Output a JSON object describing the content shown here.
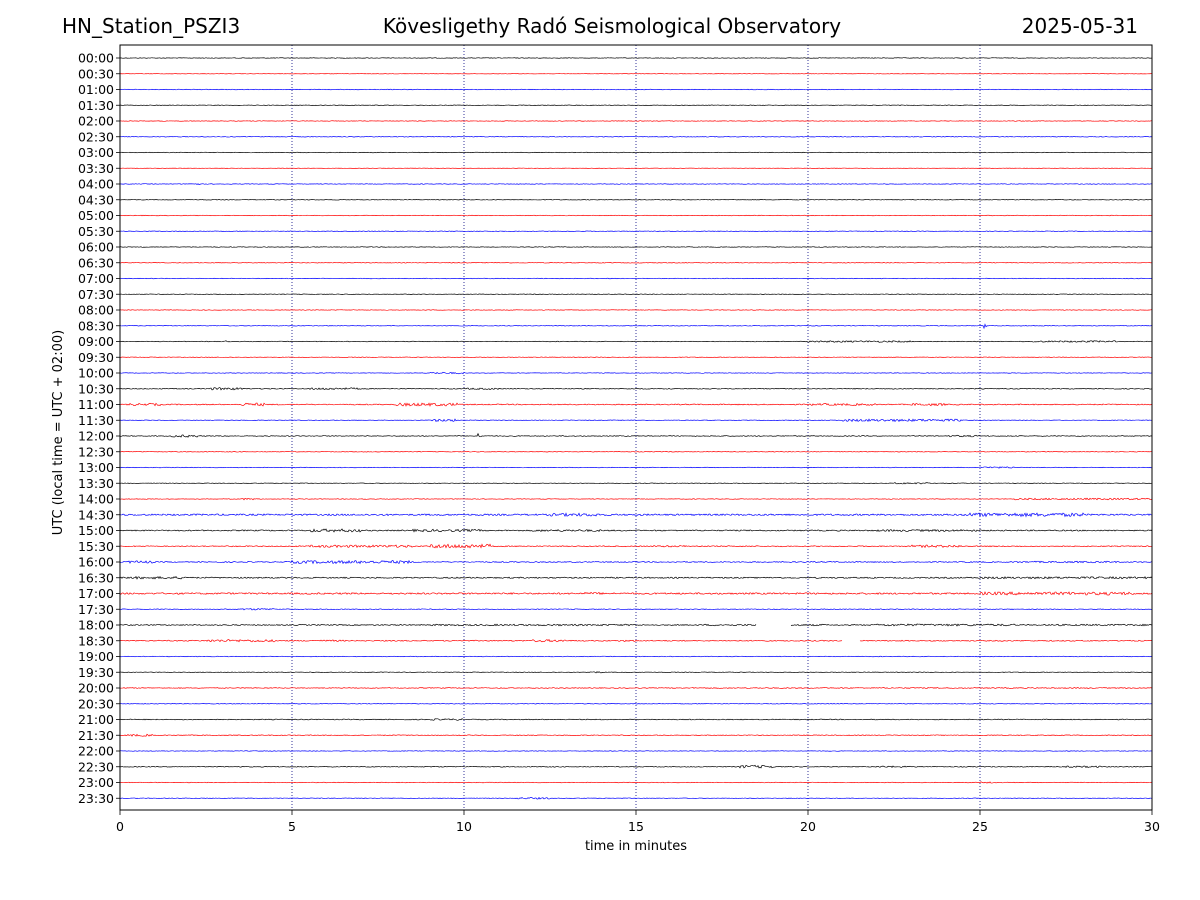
{
  "header": {
    "station": "HN_Station_PSZI3",
    "observatory": "Kövesligethy Radó Seismological Observatory",
    "date": "2025-05-31"
  },
  "chart_data": {
    "type": "line",
    "title": "Kövesligethy Radó Seismological Observatory",
    "xlabel": "time in minutes",
    "ylabel": "UTC (local time = UTC + 02:00)",
    "xlim": [
      0,
      30
    ],
    "xticks": [
      0,
      5,
      10,
      15,
      20,
      25,
      30
    ],
    "xtick_labels": [
      "0",
      "5",
      "10",
      "15",
      "20",
      "25",
      "30"
    ],
    "grid": "vertical dotted at each x tick",
    "row_colors": [
      "#000000",
      "#ff0000",
      "#0000ff"
    ],
    "rows": [
      {
        "label": "00:00",
        "activity": [
          [
            0,
            30,
            0.3
          ]
        ]
      },
      {
        "label": "00:30",
        "activity": [
          [
            0,
            30,
            0.2
          ]
        ]
      },
      {
        "label": "01:00",
        "activity": [
          [
            0,
            30,
            0.3
          ]
        ]
      },
      {
        "label": "01:30",
        "activity": [
          [
            0,
            30,
            0.3
          ]
        ]
      },
      {
        "label": "02:00",
        "activity": [
          [
            0,
            30,
            0.3
          ]
        ]
      },
      {
        "label": "02:30",
        "activity": [
          [
            0,
            30,
            0.3
          ]
        ]
      },
      {
        "label": "03:00",
        "activity": [
          [
            0,
            30,
            0.3
          ]
        ]
      },
      {
        "label": "03:30",
        "activity": [
          [
            0,
            30,
            0.2
          ]
        ]
      },
      {
        "label": "04:00",
        "activity": [
          [
            0,
            30,
            0.3
          ],
          [
            2.0,
            2.3,
            0.8
          ]
        ]
      },
      {
        "label": "04:30",
        "activity": [
          [
            0,
            30,
            0.3
          ]
        ]
      },
      {
        "label": "05:00",
        "activity": [
          [
            0,
            30,
            0.3
          ]
        ]
      },
      {
        "label": "05:30",
        "activity": [
          [
            0,
            30,
            0.3
          ]
        ]
      },
      {
        "label": "06:00",
        "activity": [
          [
            0,
            30,
            0.3
          ]
        ]
      },
      {
        "label": "06:30",
        "activity": [
          [
            0,
            30,
            0.3
          ]
        ]
      },
      {
        "label": "07:00",
        "activity": [
          [
            0,
            30,
            0.3
          ]
        ]
      },
      {
        "label": "07:30",
        "activity": [
          [
            0,
            30,
            0.3
          ]
        ]
      },
      {
        "label": "08:00",
        "activity": [
          [
            0,
            30,
            0.3
          ]
        ]
      },
      {
        "label": "08:30",
        "activity": [
          [
            0,
            30,
            0.3
          ],
          [
            25.1,
            25.2,
            2.5
          ]
        ]
      },
      {
        "label": "09:00",
        "activity": [
          [
            0,
            30,
            0.3
          ],
          [
            3.0,
            3.1,
            1.2
          ],
          [
            20.0,
            23.0,
            0.8
          ],
          [
            26.5,
            29.0,
            0.8
          ]
        ]
      },
      {
        "label": "09:30",
        "activity": [
          [
            0,
            30,
            0.3
          ]
        ]
      },
      {
        "label": "10:00",
        "activity": [
          [
            0,
            30,
            0.3
          ],
          [
            9.0,
            10.0,
            0.8
          ]
        ]
      },
      {
        "label": "10:30",
        "activity": [
          [
            0,
            30,
            0.4
          ],
          [
            2.5,
            3.6,
            1.2
          ],
          [
            5.5,
            7.0,
            1.0
          ],
          [
            10.0,
            11.0,
            0.8
          ]
        ]
      },
      {
        "label": "11:00",
        "activity": [
          [
            0,
            30,
            0.5
          ],
          [
            0.2,
            1.2,
            1.2
          ],
          [
            3.5,
            4.2,
            1.5
          ],
          [
            8.0,
            9.8,
            1.5
          ],
          [
            20.0,
            22.0,
            1.0
          ],
          [
            23.0,
            24.0,
            1.2
          ]
        ]
      },
      {
        "label": "11:30",
        "activity": [
          [
            0,
            30,
            0.3
          ],
          [
            9.0,
            9.8,
            1.2
          ],
          [
            21.0,
            24.5,
            1.2
          ]
        ]
      },
      {
        "label": "12:00",
        "activity": [
          [
            0,
            30,
            0.4
          ],
          [
            1.5,
            2.3,
            1.2
          ],
          [
            10.4,
            10.5,
            2.5
          ],
          [
            24.0,
            25.0,
            0.8
          ]
        ]
      },
      {
        "label": "12:30",
        "activity": [
          [
            0,
            30,
            0.3
          ]
        ]
      },
      {
        "label": "13:00",
        "activity": [
          [
            0,
            30,
            0.3
          ],
          [
            25.0,
            26.0,
            0.8
          ]
        ]
      },
      {
        "label": "13:30",
        "activity": [
          [
            0,
            30,
            0.3
          ],
          [
            22.5,
            23.5,
            0.8
          ]
        ]
      },
      {
        "label": "14:00",
        "activity": [
          [
            0,
            30,
            0.3
          ],
          [
            3.5,
            4.0,
            0.8
          ],
          [
            26.0,
            30.0,
            0.8
          ]
        ]
      },
      {
        "label": "14:30",
        "activity": [
          [
            0,
            30,
            0.8
          ],
          [
            12.5,
            14.0,
            1.5
          ],
          [
            24.5,
            28.0,
            1.8
          ]
        ]
      },
      {
        "label": "15:00",
        "activity": [
          [
            0,
            30,
            0.6
          ],
          [
            5.5,
            7.0,
            1.5
          ],
          [
            8.5,
            10.5,
            1.2
          ],
          [
            12.0,
            14.0,
            1.0
          ],
          [
            22.0,
            25.0,
            1.0
          ]
        ]
      },
      {
        "label": "15:30",
        "activity": [
          [
            0,
            30,
            0.5
          ],
          [
            5.5,
            8.5,
            1.2
          ],
          [
            9.0,
            10.8,
            2.0
          ],
          [
            15.5,
            16.5,
            0.8
          ],
          [
            23.0,
            24.5,
            1.2
          ]
        ]
      },
      {
        "label": "16:00",
        "activity": [
          [
            0,
            30,
            0.5
          ],
          [
            0.2,
            1.0,
            1.2
          ],
          [
            5.0,
            8.5,
            1.5
          ],
          [
            26.0,
            29.0,
            0.8
          ]
        ]
      },
      {
        "label": "16:30",
        "activity": [
          [
            0,
            30,
            0.6
          ],
          [
            0.2,
            2.0,
            1.2
          ],
          [
            25.0,
            30.0,
            1.0
          ]
        ]
      },
      {
        "label": "17:00",
        "activity": [
          [
            0,
            30,
            0.8
          ],
          [
            13.5,
            14.0,
            1.2
          ],
          [
            25.0,
            29.5,
            1.5
          ]
        ]
      },
      {
        "label": "17:30",
        "activity": [
          [
            0,
            30,
            0.4
          ],
          [
            3.5,
            4.5,
            0.8
          ]
        ]
      },
      {
        "label": "18:00",
        "activity": [
          [
            0,
            30,
            0.5
          ],
          [
            9.0,
            15.0,
            0.8
          ],
          [
            17.0,
            20.5,
            0.8
          ],
          [
            22.0,
            26.0,
            1.0
          ],
          [
            27.0,
            30.0,
            0.8
          ]
        ],
        "gaps": [
          [
            18.5,
            19.5
          ]
        ]
      },
      {
        "label": "18:30",
        "activity": [
          [
            0,
            30,
            0.5
          ],
          [
            2.5,
            4.5,
            1.2
          ],
          [
            5.5,
            6.5,
            0.8
          ],
          [
            12.0,
            13.0,
            1.2
          ],
          [
            14.5,
            15.0,
            0.8
          ]
        ],
        "gaps": [
          [
            21.0,
            21.5
          ]
        ]
      },
      {
        "label": "19:00",
        "activity": [
          [
            0,
            30,
            0.3
          ]
        ]
      },
      {
        "label": "19:30",
        "activity": [
          [
            0,
            30,
            0.3
          ],
          [
            13.5,
            14.0,
            0.8
          ]
        ]
      },
      {
        "label": "20:00",
        "activity": [
          [
            0,
            30,
            0.4
          ],
          [
            16.0,
            30.0,
            0.5
          ]
        ]
      },
      {
        "label": "20:30",
        "activity": [
          [
            0,
            30,
            0.3
          ]
        ]
      },
      {
        "label": "21:00",
        "activity": [
          [
            0,
            30,
            0.4
          ],
          [
            9.0,
            10.0,
            0.8
          ]
        ]
      },
      {
        "label": "21:30",
        "activity": [
          [
            0,
            30,
            0.4
          ],
          [
            0.2,
            1.0,
            1.0
          ]
        ]
      },
      {
        "label": "22:00",
        "activity": [
          [
            0,
            30,
            0.3
          ]
        ]
      },
      {
        "label": "22:30",
        "activity": [
          [
            0,
            30,
            0.4
          ],
          [
            18.0,
            19.0,
            1.5
          ],
          [
            22.0,
            23.0,
            0.8
          ],
          [
            27.5,
            28.5,
            0.8
          ]
        ]
      },
      {
        "label": "23:00",
        "activity": [
          [
            0,
            30,
            0.3
          ],
          [
            25.0,
            25.5,
            0.8
          ]
        ]
      },
      {
        "label": "23:30",
        "activity": [
          [
            0,
            30,
            0.3
          ],
          [
            11.5,
            12.5,
            0.8
          ]
        ]
      }
    ]
  }
}
